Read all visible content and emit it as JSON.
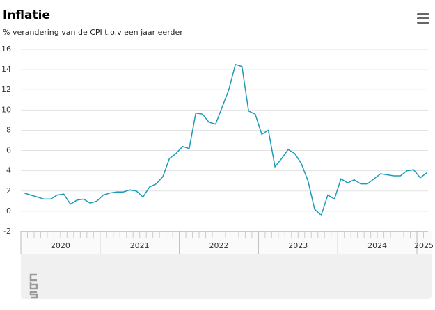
{
  "chart_data": {
    "type": "line",
    "title": "Inflatie",
    "subtitle": "% verandering van de CPI t.o.v een jaar eerder",
    "categories": [
      "2020",
      null,
      null,
      null,
      null,
      null,
      null,
      null,
      null,
      null,
      null,
      null,
      "2021",
      null,
      null,
      null,
      null,
      null,
      null,
      null,
      null,
      null,
      null,
      null,
      "2022",
      null,
      null,
      null,
      null,
      null,
      null,
      null,
      null,
      null,
      null,
      null,
      "2023",
      null,
      null,
      null,
      null,
      null,
      null,
      null,
      null,
      null,
      null,
      null,
      "2024",
      null,
      null,
      null,
      null,
      null,
      null,
      null,
      null,
      null,
      null,
      null,
      "2025",
      null
    ],
    "series": [
      {
        "name": "CPI",
        "color": "#1a9bb8",
        "values": [
          1.8,
          1.6,
          1.4,
          1.2,
          1.2,
          1.6,
          1.7,
          0.7,
          1.1,
          1.2,
          0.8,
          1.0,
          1.6,
          1.8,
          1.9,
          1.9,
          2.1,
          2.0,
          1.4,
          2.4,
          2.7,
          3.4,
          5.2,
          5.7,
          6.4,
          6.2,
          9.7,
          9.6,
          8.8,
          8.6,
          10.3,
          12.0,
          14.5,
          14.3,
          9.9,
          9.6,
          7.6,
          8.0,
          4.4,
          5.2,
          6.1,
          5.7,
          4.7,
          3.0,
          0.2,
          -0.4,
          1.6,
          1.2,
          3.2,
          2.8,
          3.1,
          2.7,
          2.7,
          3.2,
          3.7,
          3.6,
          3.5,
          3.5,
          4.0,
          4.1,
          3.3,
          3.8
        ]
      }
    ],
    "ylim": [
      -2,
      16
    ],
    "yticks": [
      -2,
      0,
      2,
      4,
      6,
      8,
      10,
      12,
      14,
      16
    ],
    "grid": true
  }
}
